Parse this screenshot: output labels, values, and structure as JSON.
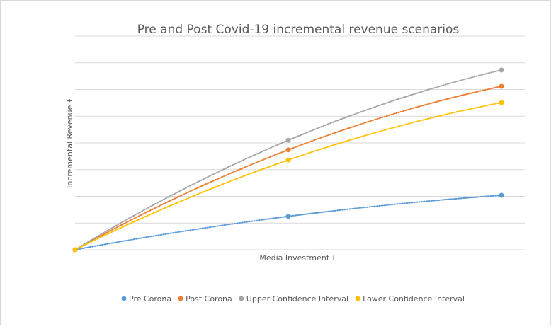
{
  "chart_data": {
    "type": "line",
    "title": "Pre and Post Covid-19 incremental revenue scenarios",
    "xlabel": "Media Investment £",
    "ylabel": "Incremental Revenue £",
    "x": [
      0,
      1,
      2
    ],
    "ylim": [
      0,
      8
    ],
    "grid": true,
    "legend_position": "bottom",
    "series": [
      {
        "name": "Pre Corona",
        "color": "#5b9bd5",
        "values": [
          0,
          1.25,
          2.04
        ]
      },
      {
        "name": "Post Corona",
        "color": "#ed7d31",
        "values": [
          0,
          3.74,
          6.12
        ]
      },
      {
        "name": "Upper Confidence Interval",
        "color": "#a5a5a5",
        "values": [
          0,
          4.1,
          6.73
        ]
      },
      {
        "name": "Lower Confidence Interval",
        "color": "#ffc000",
        "values": [
          0,
          3.36,
          5.51
        ]
      }
    ]
  }
}
